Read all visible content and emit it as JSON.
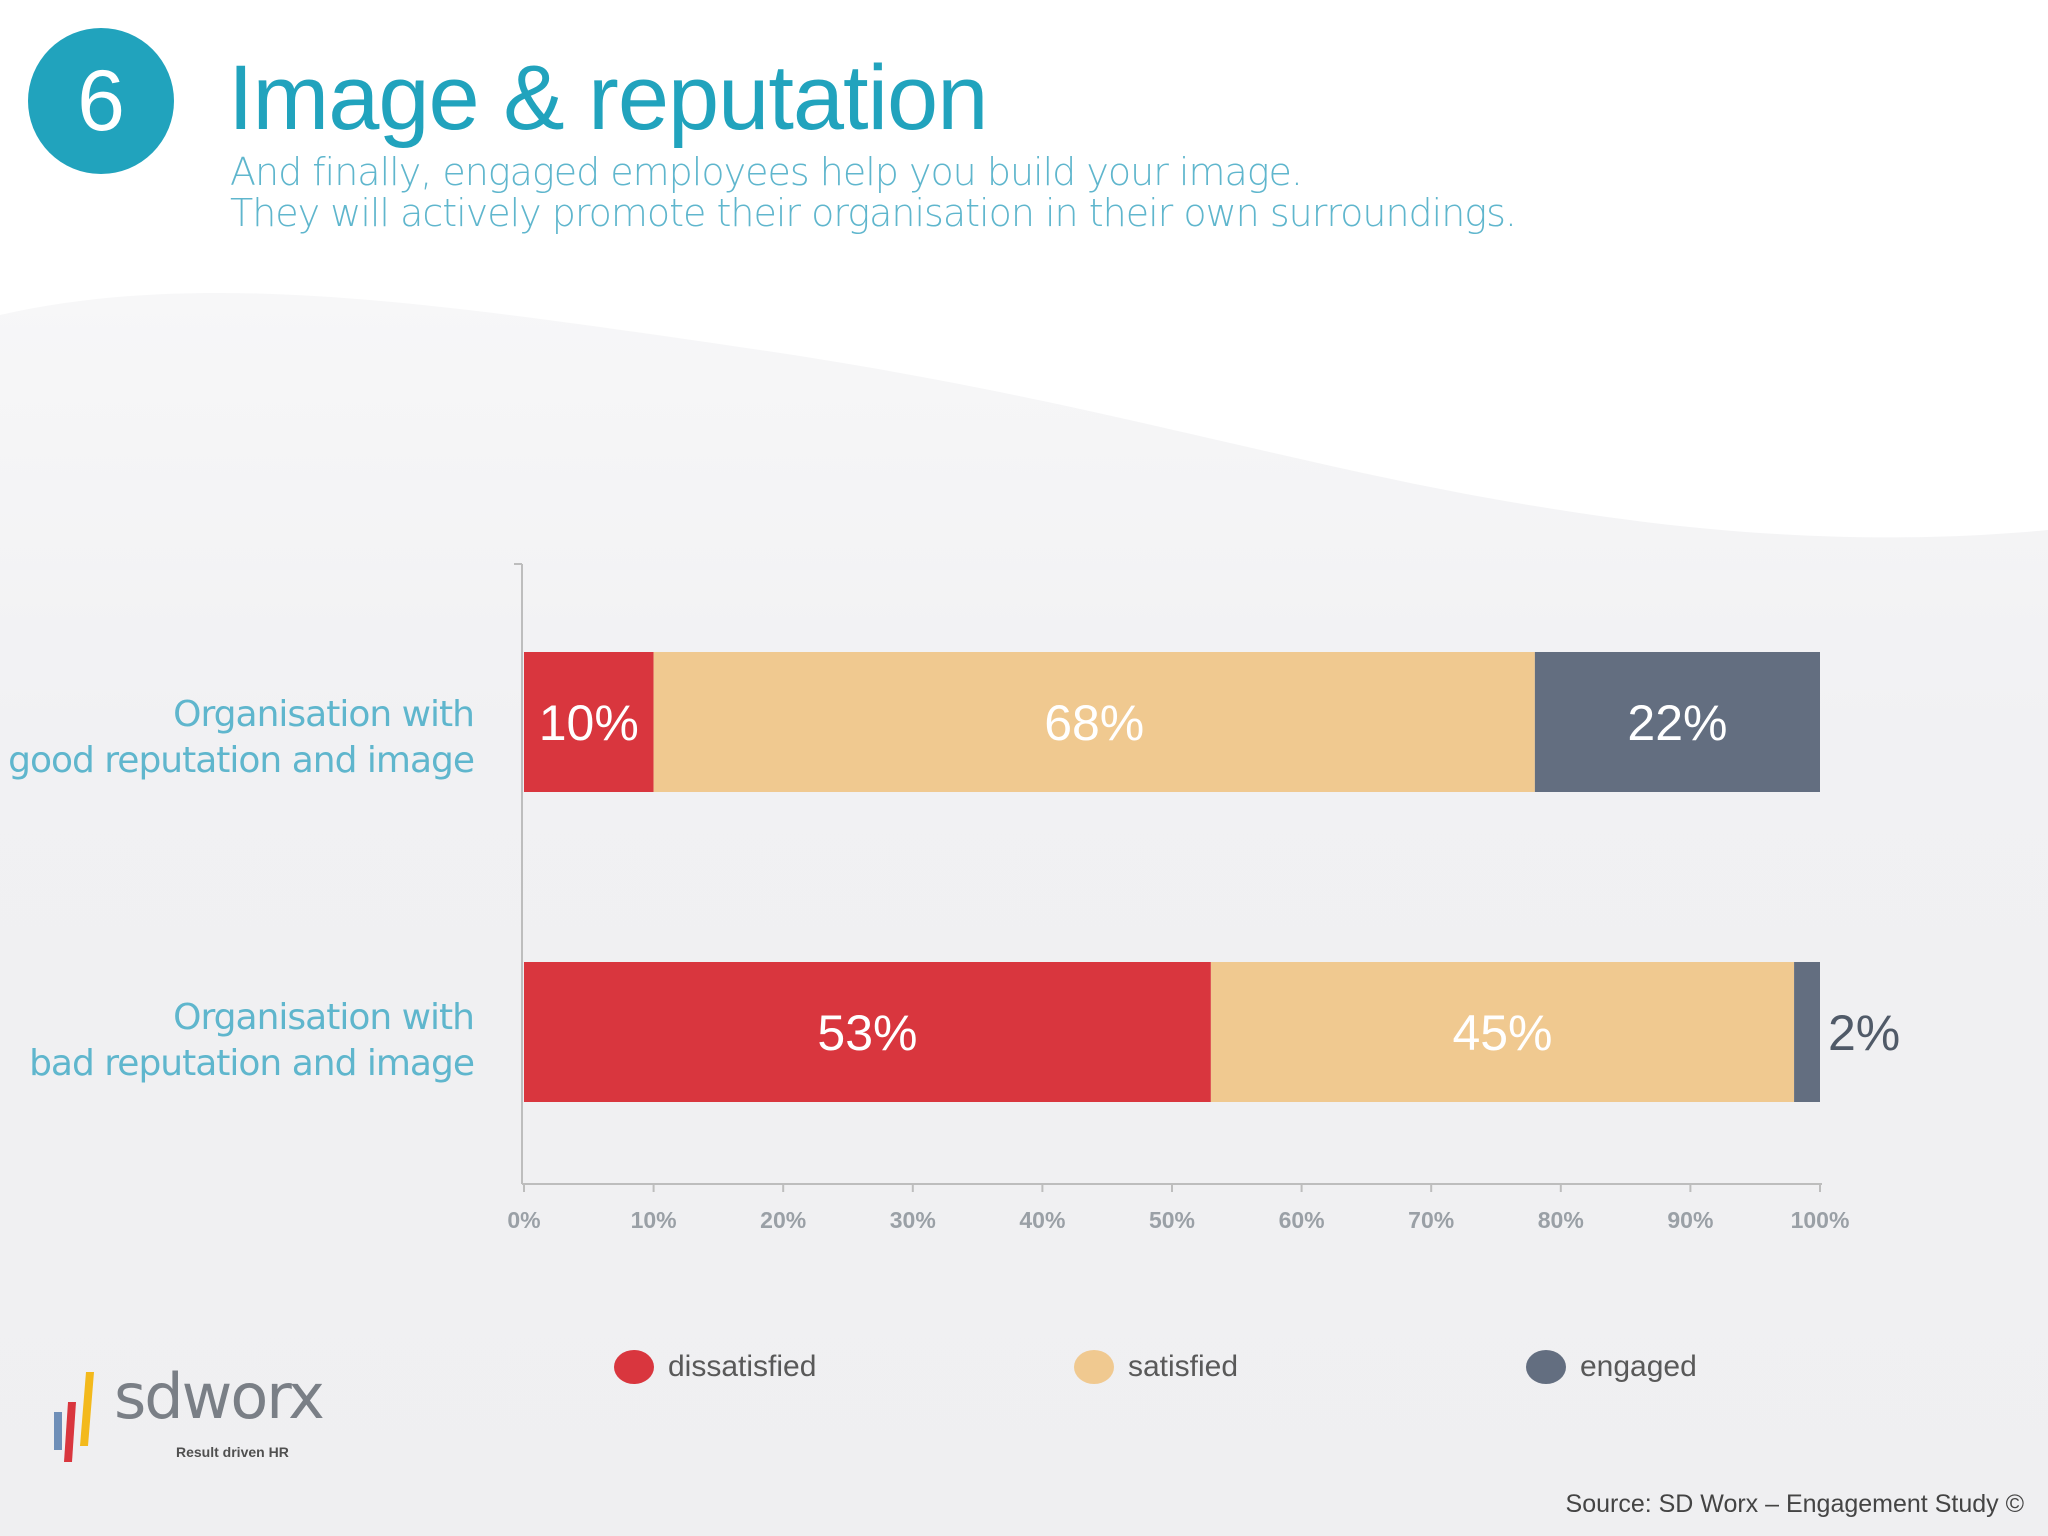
{
  "header": {
    "step_number": "6",
    "title": "Image & reputation",
    "subtitle_line1": "And finally, engaged employees help you build your image.",
    "subtitle_line2": "They will actively promote their organisation in their own surroundings."
  },
  "chart_data": {
    "type": "bar",
    "orientation": "horizontal",
    "stacked": true,
    "categories": [
      [
        "Organisation with",
        "good reputation and image"
      ],
      [
        "Organisation with",
        "bad reputation and image"
      ]
    ],
    "series": [
      {
        "name": "dissatisfied",
        "values": [
          10,
          53
        ],
        "labels": [
          "10%",
          "53%"
        ],
        "color": "#d9363e"
      },
      {
        "name": "satisfied",
        "values": [
          68,
          45
        ],
        "labels": [
          "68%",
          "45%"
        ],
        "color": "#f0c990"
      },
      {
        "name": "engaged",
        "values": [
          22,
          2
        ],
        "labels": [
          "22%",
          "2%"
        ],
        "color": "#636e80"
      }
    ],
    "xlim": [
      0,
      100
    ],
    "xticks": [
      "0%",
      "10%",
      "20%",
      "30%",
      "40%",
      "50%",
      "60%",
      "70%",
      "80%",
      "90%",
      "100%"
    ],
    "grid": false,
    "legend_position": "bottom"
  },
  "logo": {
    "text": "sdworx",
    "tagline": "Result driven HR"
  },
  "footer": {
    "source": "Source: SD Worx  – Engagement Study ©"
  },
  "colors": {
    "accent": "#21a3bd",
    "label_text": "#5fb6cd"
  }
}
